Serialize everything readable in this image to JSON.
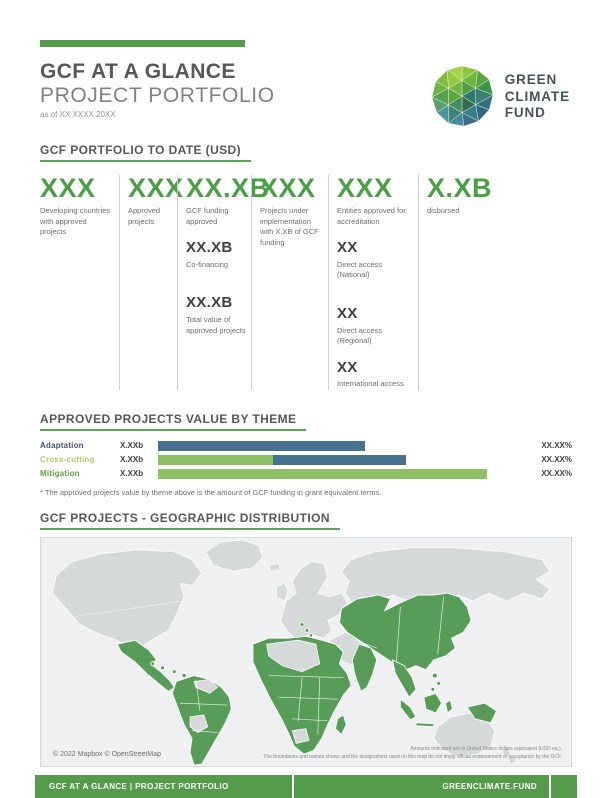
{
  "header": {
    "title": "GCF AT A GLANCE",
    "subtitle": "PROJECT PORTFOLIO",
    "as_of": "as of XX XXXX 20XX",
    "logo_lines": [
      "GREEN",
      "CLIMATE",
      "FUND"
    ]
  },
  "colors": {
    "brand_green": "#569b4c",
    "stat_green": "#4ba046",
    "heading_underline_green": "#5ba355",
    "bar_blue": "#46718f",
    "bar_light_green": "#8cc063",
    "map_highlight_green": "#579d58",
    "map_land_gray": "#d6d9d9"
  },
  "portfolio": {
    "heading": "GCF PORTFOLIO TO DATE (USD)",
    "columns": [
      {
        "stats": [
          {
            "value": "XXX",
            "label": "Developing countries with approved projects"
          }
        ]
      },
      {
        "stats": [
          {
            "value": "XXX",
            "label": "Approved projects"
          }
        ]
      },
      {
        "stats": [
          {
            "value": "XX.XB",
            "label": "GCF funding approved"
          },
          {
            "value": "XX.XB",
            "label": "Co-financing"
          },
          {
            "value": "XX.XB",
            "label": "Total value of approved projects"
          }
        ]
      },
      {
        "stats": [
          {
            "value": "XXX",
            "label": "Projects under implementation with X.XB of GCF funding"
          }
        ]
      },
      {
        "stats": [
          {
            "value": "XXX",
            "label": "Entities approved for accreditation"
          },
          {
            "value": "XX",
            "label": "Direct access (National)"
          },
          {
            "value": "XX",
            "label": "Direct access (Regional)"
          },
          {
            "value": "XX",
            "label": "International access"
          }
        ]
      },
      {
        "stats": [
          {
            "value": "X.XB",
            "label": "disbursed"
          }
        ]
      }
    ]
  },
  "theme_section": {
    "heading": "APPROVED PROJECTS VALUE BY THEME",
    "footnote": "* The approved projects value by theme above is the amount of GCF funding in grant equivalent terms."
  },
  "chart_data": {
    "type": "bar",
    "title": "APPROVED PROJECTS VALUE BY THEME",
    "categories": [
      "Adaptation",
      "Cross-cutting",
      "Mitigation"
    ],
    "value_labels": [
      "X.XXb",
      "X.XXb",
      "X.XXb"
    ],
    "percent_labels": [
      "XX.XX%",
      "XX.XX%",
      "XX.XX%"
    ],
    "label_colors": [
      "#43536a",
      "#b5c96a",
      "#5f9e42"
    ],
    "bars": [
      {
        "segments": [
          {
            "color": "#46718f",
            "width_pct": 57
          }
        ]
      },
      {
        "segments": [
          {
            "color": "#8cc063",
            "width_pct": 31.5
          },
          {
            "color": "#46718f",
            "width_pct": 36.5
          }
        ]
      },
      {
        "segments": [
          {
            "color": "#8cc063",
            "width_pct": 90.5
          }
        ]
      }
    ],
    "xlabel": "",
    "ylabel": "",
    "legend_position": "none",
    "grid": false
  },
  "map_section": {
    "heading": "GCF PROJECTS - GEOGRAPHIC DISTRIBUTION",
    "attribution": "© 2022 Mapbox © OpenStreetMap",
    "disclaimer_line1": "Amounts indicated are in United States dollars equivalent (USD eq.).",
    "disclaimer_line2": "The boundaries and names shown and the designations used on this map do not imply official endorsement or acceptance by the GCF."
  },
  "footer": {
    "left": "GCF AT A GLANCE | PROJECT PORTFOLIO",
    "right": "GREENCLIMATE.FUND"
  }
}
